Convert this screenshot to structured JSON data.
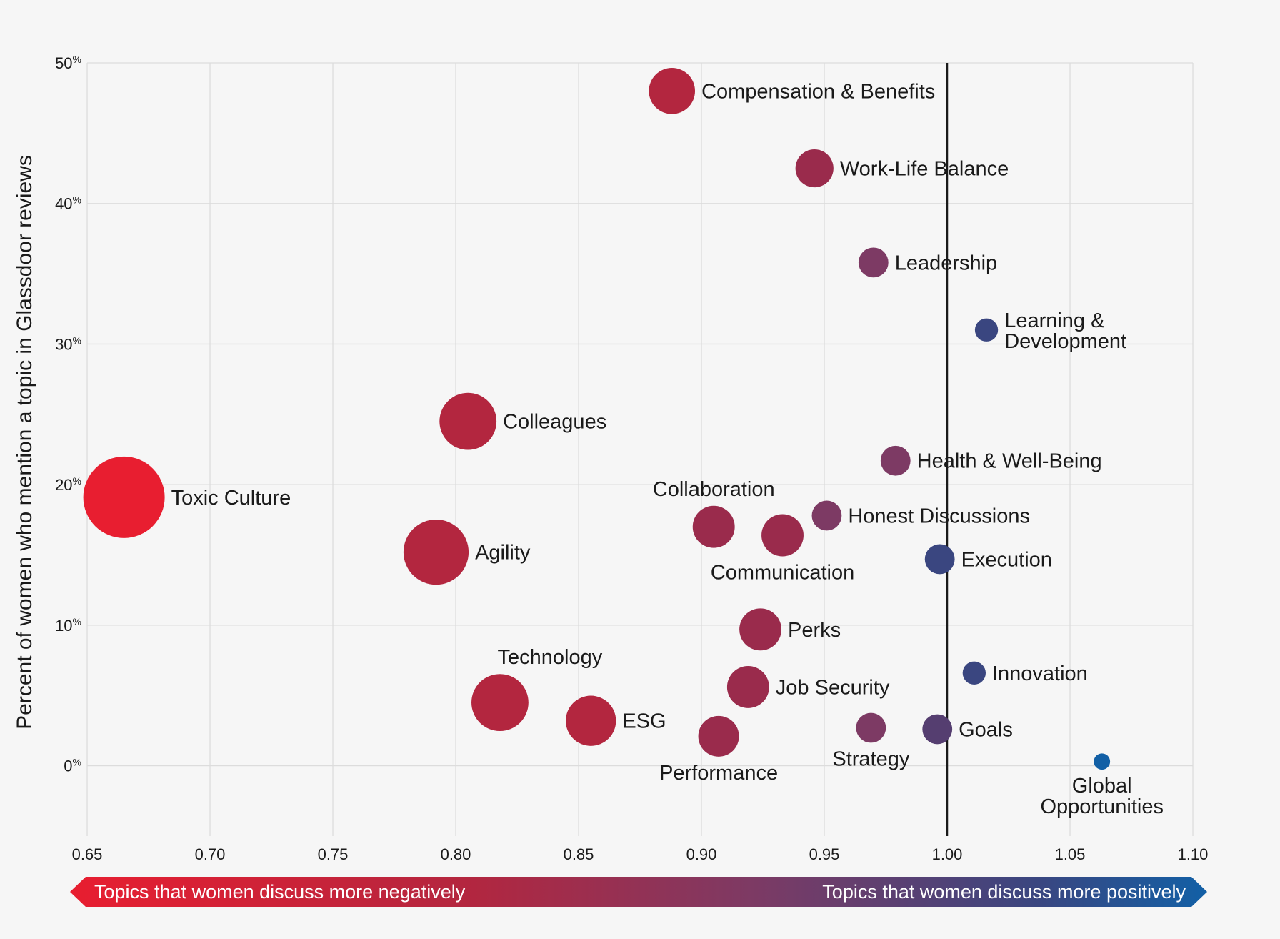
{
  "chart_data": {
    "type": "scatter",
    "title": "",
    "xlabel": "",
    "ylabel": "Percent of women who mention a topic in Glassdoor reviews",
    "xlim": [
      0.65,
      1.1
    ],
    "ylim": [
      -5,
      50
    ],
    "x_ticks": [
      "0.65",
      "0.70",
      "0.75",
      "0.80",
      "0.85",
      "0.90",
      "0.95",
      "1.00",
      "1.05",
      "1.10"
    ],
    "y_ticks": [
      {
        "value": 0,
        "label": "0%"
      },
      {
        "value": 10,
        "label": "10%"
      },
      {
        "value": 20,
        "label": "20%"
      },
      {
        "value": 30,
        "label": "30%"
      },
      {
        "value": 40,
        "label": "40%"
      },
      {
        "value": 50,
        "label": "50%"
      }
    ],
    "reference_line_x": 1.0,
    "grid": true,
    "arrow_left_label": "Topics that women discuss more negatively",
    "arrow_right_label": "Topics that women discuss more positively",
    "colors": {
      "most_negative": "#e81e30",
      "negative": "#b3263f",
      "neutral": "#7d3a64",
      "positive": "#3a4680",
      "most_positive": "#1260a6",
      "background": "#f6f6f6",
      "grid": "#dcdcdc",
      "reference_line": "#1a1a1a"
    },
    "points": [
      {
        "label": "Compensation & Benefits",
        "x": 0.888,
        "y": 48.0,
        "size": 0.34,
        "color": "#b3263f"
      },
      {
        "label": "Work-Life Balance",
        "x": 0.946,
        "y": 42.5,
        "size": 0.28,
        "color": "#9a2b4c"
      },
      {
        "label": "Leadership",
        "x": 0.97,
        "y": 35.8,
        "size": 0.22,
        "color": "#7d3a64"
      },
      {
        "label": "Learning & Development",
        "x": 1.016,
        "y": 31.0,
        "size": 0.17,
        "color": "#3a4680"
      },
      {
        "label": "Colleagues",
        "x": 0.805,
        "y": 24.5,
        "size": 0.42,
        "color": "#b3263f"
      },
      {
        "label": "Health & Well-Being",
        "x": 0.979,
        "y": 21.7,
        "size": 0.22,
        "color": "#7d3a64"
      },
      {
        "label": "Toxic Culture",
        "x": 0.665,
        "y": 19.1,
        "size": 0.6,
        "color": "#e81e30"
      },
      {
        "label": "Honest Discussions",
        "x": 0.951,
        "y": 17.8,
        "size": 0.22,
        "color": "#7d3a64"
      },
      {
        "label": "Collaboration",
        "x": 0.905,
        "y": 17.0,
        "size": 0.31,
        "color": "#9a2b4c"
      },
      {
        "label": "Communication",
        "x": 0.933,
        "y": 16.4,
        "size": 0.31,
        "color": "#9a2b4c"
      },
      {
        "label": "Agility",
        "x": 0.792,
        "y": 15.2,
        "size": 0.48,
        "color": "#b3263f"
      },
      {
        "label": "Execution",
        "x": 0.997,
        "y": 14.7,
        "size": 0.22,
        "color": "#3a4680"
      },
      {
        "label": "Perks",
        "x": 0.924,
        "y": 9.7,
        "size": 0.31,
        "color": "#9a2b4c"
      },
      {
        "label": "Innovation",
        "x": 1.011,
        "y": 6.6,
        "size": 0.17,
        "color": "#3a4680"
      },
      {
        "label": "Job Security",
        "x": 0.919,
        "y": 5.6,
        "size": 0.31,
        "color": "#9a2b4c"
      },
      {
        "label": "Technology",
        "x": 0.818,
        "y": 4.5,
        "size": 0.42,
        "color": "#b3263f"
      },
      {
        "label": "ESG",
        "x": 0.855,
        "y": 3.2,
        "size": 0.37,
        "color": "#b3263f"
      },
      {
        "label": "Strategy",
        "x": 0.969,
        "y": 2.7,
        "size": 0.22,
        "color": "#7d3a64"
      },
      {
        "label": "Goals",
        "x": 0.996,
        "y": 2.6,
        "size": 0.22,
        "color": "#553e70"
      },
      {
        "label": "Performance",
        "x": 0.907,
        "y": 2.1,
        "size": 0.3,
        "color": "#9a2b4c"
      },
      {
        "label": "Global Opportunities",
        "x": 1.063,
        "y": 0.3,
        "size": 0.12,
        "color": "#1260a6"
      }
    ]
  }
}
